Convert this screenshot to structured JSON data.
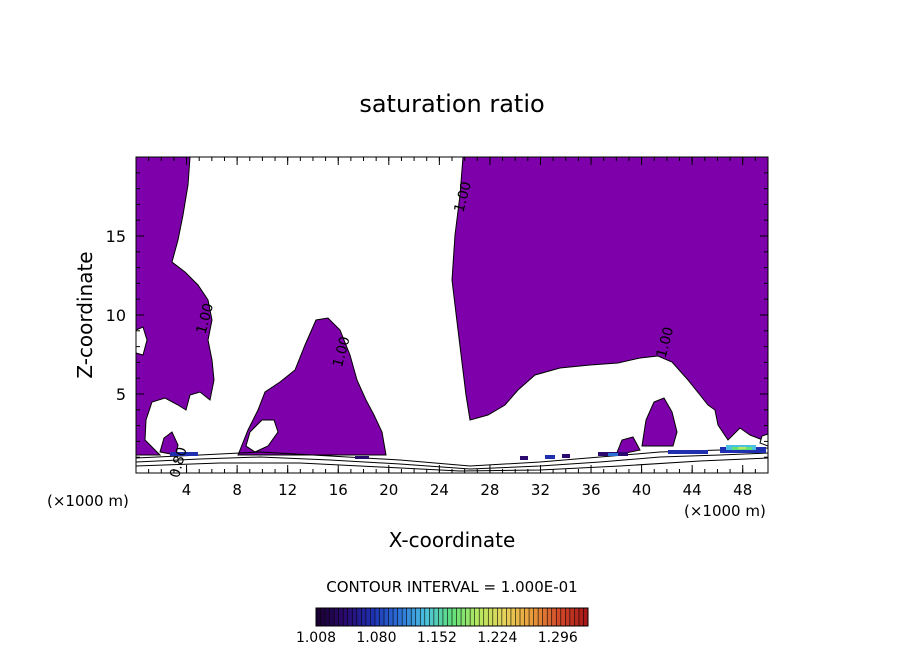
{
  "chart_data": {
    "type": "heatmap",
    "title": "saturation ratio",
    "xlabel": "X-coordinate",
    "ylabel": "Z-coordinate",
    "x_unit": "(×1000 m)",
    "x_unit_right": "(×1000 m)",
    "xlim": [
      0,
      50
    ],
    "ylim": [
      0,
      20
    ],
    "x_ticks": [
      4,
      8,
      12,
      16,
      20,
      24,
      28,
      32,
      36,
      40,
      44,
      48
    ],
    "y_ticks": [
      5,
      10,
      15
    ],
    "fill_color": "#7d00aa",
    "contour_levels_labeled": [
      {
        "text": "1.00",
        "x": 5.8,
        "y": 9.7
      },
      {
        "text": "1.00",
        "x": 16.6,
        "y": 7.6
      },
      {
        "text": "1.00",
        "x": 26.2,
        "y": 17.4
      },
      {
        "text": "1.00",
        "x": 42.2,
        "y": 8.2
      },
      {
        "text": "0.80",
        "x": 3.7,
        "y": 0.6
      }
    ],
    "contour_interval": "CONTOUR INTERVAL = 1.000E-01",
    "colorbar": {
      "min": 1.008,
      "max": 1.332,
      "tick_labels": [
        "1.008",
        "1.080",
        "1.152",
        "1.224",
        "1.296"
      ],
      "colors": [
        "#1a0033",
        "#2a0a6e",
        "#1f2fb0",
        "#2a6fd8",
        "#4bc0e0",
        "#5fe07a",
        "#b8e860",
        "#e8d25a",
        "#e89a3a",
        "#d24a2a",
        "#a81818"
      ]
    },
    "grid": false
  }
}
